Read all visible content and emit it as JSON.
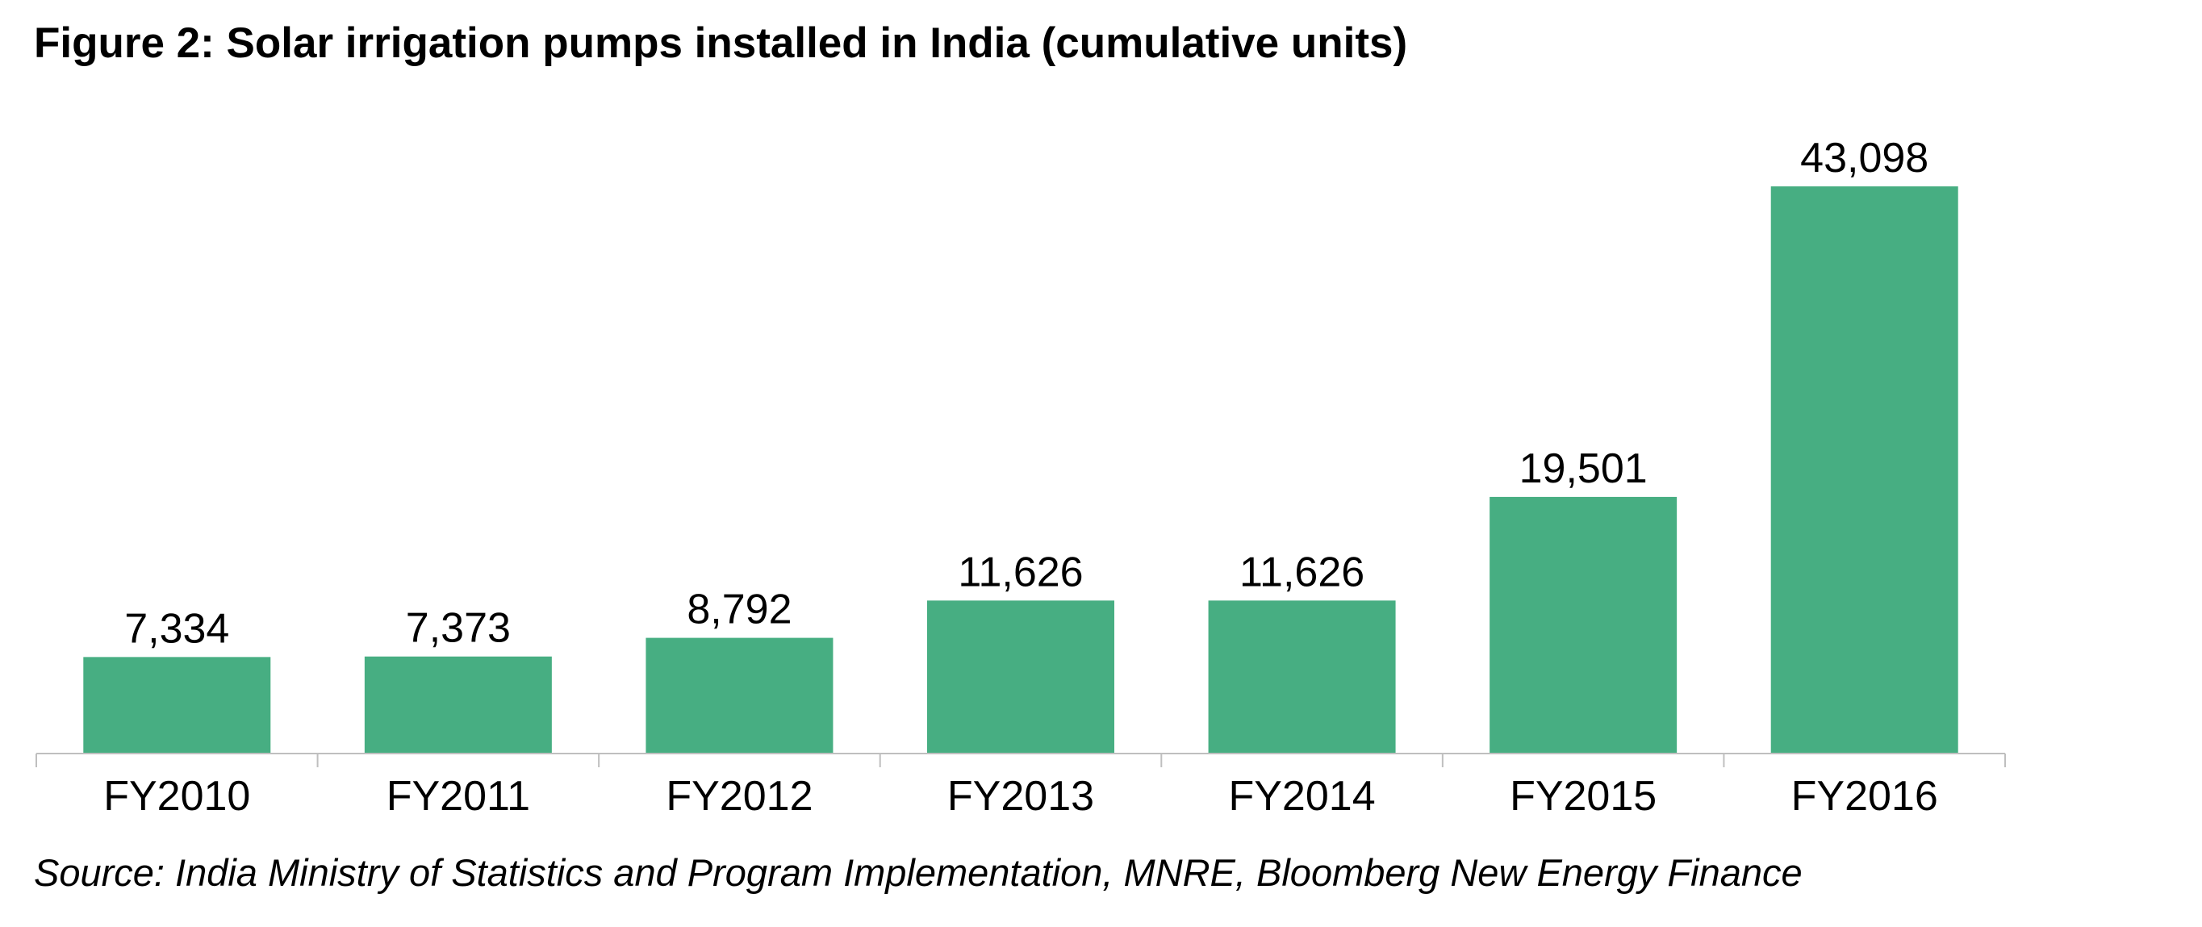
{
  "chart_data": {
    "type": "bar",
    "title": "Figure 2: Solar irrigation pumps installed in India (cumulative units)",
    "categories": [
      "FY2010",
      "FY2011",
      "FY2012",
      "FY2013",
      "FY2014",
      "FY2015",
      "FY2016"
    ],
    "values": [
      7334,
      7373,
      8792,
      11626,
      11626,
      19501,
      43098
    ],
    "data_labels": [
      "7,334",
      "7,373",
      "8,792",
      "11,626",
      "11,626",
      "19,501",
      "43,098"
    ],
    "xlabel": "",
    "ylabel": "",
    "ylim": [
      0,
      45000
    ],
    "grid": false,
    "legend": "none",
    "bar_color": "#47AE82",
    "axis_color": "#BFBFBF",
    "source": "Source: India Ministry of Statistics and Program Implementation, MNRE, Bloomberg New Energy Finance"
  }
}
